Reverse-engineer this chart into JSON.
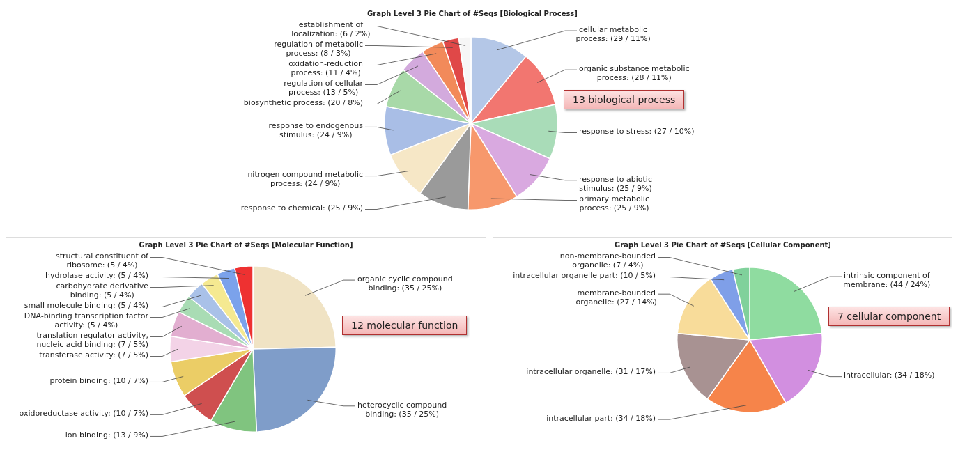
{
  "chart_data": [
    {
      "type": "pie",
      "title": "Graph Level 3 Pie Chart of #Seqs [Biological Process]",
      "categories": [
        "cellular metabolic process",
        "organic substance metabolic process",
        "response to stress",
        "response to abiotic stimulus",
        "primary metabolic process",
        "response to chemical",
        "nitrogen compound metabolic process",
        "response to endogenous stimulus",
        "biosynthetic process",
        "regulation of cellular process",
        "oxidation-reduction process",
        "regulation of metabolic process",
        "establishment of localization"
      ],
      "values": [
        29,
        28,
        27,
        25,
        25,
        25,
        24,
        24,
        20,
        13,
        11,
        8,
        6
      ],
      "value_labels": [
        "(29 / 11%)",
        "(28 / 11%)",
        "(27 / 10%)",
        "(25 / 9%)",
        "(25 / 9%)",
        "(25 / 9%)",
        "(24 / 9%)",
        "(24 / 9%)",
        "(20 / 8%)",
        "(13 / 5%)",
        "(11 / 4%)",
        "(8 / 3%)",
        "(6 / 2%)"
      ],
      "colors": [
        "#b4c7e7",
        "#f27670",
        "#a9dcb8",
        "#d9a9e0",
        "#f7986c",
        "#9a9a9a",
        "#f6e7c6",
        "#a9bee6",
        "#a8d9a8",
        "#d3aadd",
        "#f28a5a",
        "#e04848",
        "#f6f6f6"
      ],
      "annotations": [
        "13 biological process"
      ]
    },
    {
      "type": "pie",
      "title": "Graph Level 3 Pie Chart of #Seqs [Molecular Function]",
      "categories": [
        "organic cyclic compound binding",
        "heterocyclic compound binding",
        "ion binding",
        "oxidoreductase activity",
        "protein binding",
        "transferase activity",
        "translation regulator activity, nucleic acid binding",
        "DNA-binding transcription factor activity",
        "small molecule binding",
        "carbohydrate derivative binding",
        "hydrolase activity",
        "structural constituent of ribosome"
      ],
      "values": [
        35,
        35,
        13,
        10,
        10,
        7,
        7,
        5,
        5,
        5,
        5,
        5
      ],
      "value_labels": [
        "(35 / 25%)",
        "(35 / 25%)",
        "(13 / 9%)",
        "(10 / 7%)",
        "(10 / 7%)",
        "(7 / 5%)",
        "(7 / 5%)",
        "(5 / 4%)",
        "(5 / 4%)",
        "(5 / 4%)",
        "(5 / 4%)",
        "(5 / 4%)"
      ],
      "colors": [
        "#f0e3c4",
        "#7f9dc9",
        "#80c47f",
        "#cf4f4f",
        "#ebcd66",
        "#f3d3e7",
        "#e2aed0",
        "#a9dcb4",
        "#a9c1e8",
        "#f5e991",
        "#7ba2eb",
        "#ee3131"
      ],
      "annotations": [
        "12 molecular function"
      ]
    },
    {
      "type": "pie",
      "title": "Graph Level 3 Pie Chart of #Seqs [Cellular Component]",
      "categories": [
        "intrinsic component of membrane",
        "intracellular",
        "intracellular part",
        "intracellular organelle",
        "membrane-bounded organelle",
        "intracellular organelle part",
        "non-membrane-bounded organelle"
      ],
      "values": [
        44,
        34,
        34,
        31,
        27,
        10,
        7
      ],
      "value_labels": [
        "(44 / 24%)",
        "(34 / 18%)",
        "(34 / 18%)",
        "(31 / 17%)",
        "(27 / 14%)",
        "(10 / 5%)",
        "(7 / 4%)"
      ],
      "colors": [
        "#8fdca0",
        "#d28fe0",
        "#f6844a",
        "#a89292",
        "#f8dc9a",
        "#7f9fe8",
        "#80d19b"
      ],
      "annotations": [
        "7 cellular component"
      ]
    }
  ]
}
